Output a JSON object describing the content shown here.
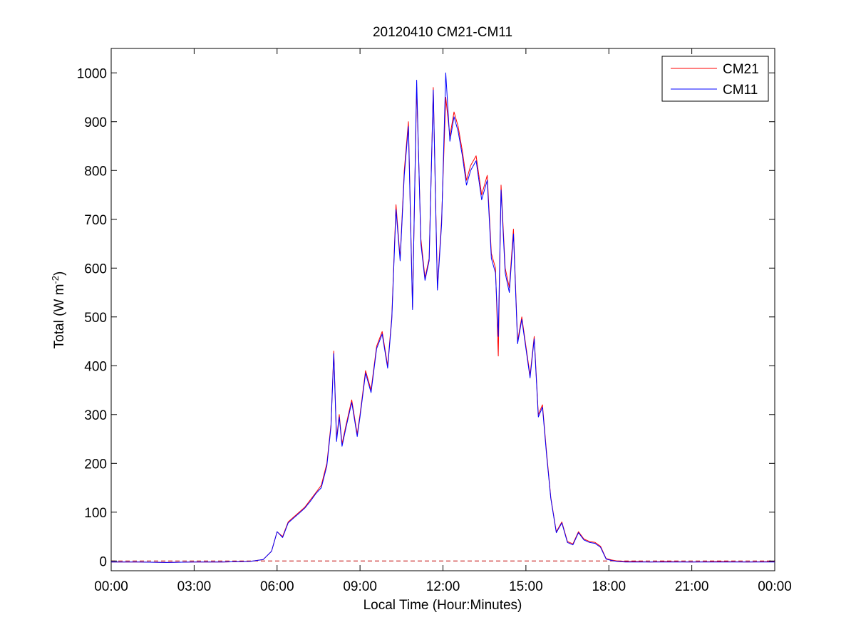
{
  "chart_data": {
    "type": "line",
    "title": "20120410 CM21-CM11",
    "xlabel": "Local Time (Hour:Minutes)",
    "ylabel_main": "Total (W m",
    "ylabel_sup": "-2",
    "ylabel_close": ")",
    "xlim": [
      0,
      24
    ],
    "ylim": [
      -20,
      1050
    ],
    "x_ticks": [
      0,
      3,
      6,
      9,
      12,
      15,
      18,
      21,
      24
    ],
    "x_tick_labels": [
      "00:00",
      "03:00",
      "06:00",
      "09:00",
      "12:00",
      "15:00",
      "18:00",
      "21:00",
      "00:00"
    ],
    "y_ticks": [
      0,
      100,
      200,
      300,
      400,
      500,
      600,
      700,
      800,
      900,
      1000
    ],
    "y_tick_labels": [
      "0",
      "100",
      "200",
      "300",
      "400",
      "500",
      "600",
      "700",
      "800",
      "900",
      "1000"
    ],
    "grid": false,
    "legend_position": "top-right",
    "zero_line": {
      "style": "dashed",
      "color": "#c00000",
      "value": 0
    },
    "series": [
      {
        "name": "CM21",
        "color": "#ff0000",
        "x": [
          0,
          1,
          2,
          3,
          4,
          5,
          5.5,
          5.8,
          6.0,
          6.2,
          6.4,
          6.6,
          6.8,
          7.0,
          7.2,
          7.4,
          7.6,
          7.8,
          7.95,
          8.05,
          8.15,
          8.25,
          8.35,
          8.5,
          8.7,
          8.9,
          9.0,
          9.2,
          9.4,
          9.6,
          9.8,
          10.0,
          10.15,
          10.3,
          10.45,
          10.6,
          10.75,
          10.9,
          11.05,
          11.2,
          11.35,
          11.5,
          11.65,
          11.8,
          11.95,
          12.1,
          12.25,
          12.4,
          12.55,
          12.7,
          12.85,
          13.0,
          13.2,
          13.4,
          13.6,
          13.75,
          13.9,
          14.0,
          14.1,
          14.25,
          14.4,
          14.55,
          14.7,
          14.85,
          15.0,
          15.15,
          15.3,
          15.45,
          15.6,
          15.75,
          15.9,
          16.1,
          16.3,
          16.5,
          16.7,
          16.9,
          17.1,
          17.3,
          17.5,
          17.7,
          17.9,
          18.1,
          18.3,
          18.6,
          19.0,
          19.5,
          20,
          21,
          22,
          23,
          24
        ],
        "values": [
          -2,
          -2,
          -3,
          -2,
          -2,
          -1,
          3,
          20,
          60,
          50,
          80,
          90,
          100,
          110,
          125,
          140,
          155,
          200,
          280,
          430,
          250,
          300,
          240,
          280,
          330,
          260,
          300,
          390,
          350,
          440,
          470,
          400,
          500,
          730,
          620,
          800,
          900,
          520,
          970,
          660,
          580,
          620,
          970,
          560,
          700,
          950,
          870,
          920,
          890,
          840,
          780,
          810,
          830,
          750,
          790,
          630,
          600,
          420,
          770,
          600,
          560,
          680,
          450,
          500,
          440,
          380,
          460,
          300,
          320,
          220,
          130,
          60,
          80,
          40,
          35,
          60,
          45,
          40,
          38,
          30,
          5,
          2,
          0,
          -1,
          -1,
          -2,
          -1,
          -2,
          -1,
          -2,
          -1
        ]
      },
      {
        "name": "CM11",
        "color": "#0000ff",
        "x": [
          0,
          1,
          2,
          3,
          4,
          5,
          5.5,
          5.8,
          6.0,
          6.2,
          6.4,
          6.6,
          6.8,
          7.0,
          7.2,
          7.4,
          7.6,
          7.8,
          7.95,
          8.05,
          8.15,
          8.25,
          8.35,
          8.5,
          8.7,
          8.9,
          9.0,
          9.2,
          9.4,
          9.6,
          9.8,
          10.0,
          10.15,
          10.3,
          10.45,
          10.6,
          10.75,
          10.9,
          11.05,
          11.2,
          11.35,
          11.5,
          11.65,
          11.8,
          11.95,
          12.1,
          12.25,
          12.4,
          12.55,
          12.7,
          12.85,
          13.0,
          13.2,
          13.4,
          13.6,
          13.75,
          13.9,
          14.0,
          14.1,
          14.25,
          14.4,
          14.55,
          14.7,
          14.85,
          15.0,
          15.15,
          15.3,
          15.45,
          15.6,
          15.75,
          15.9,
          16.1,
          16.3,
          16.5,
          16.7,
          16.9,
          17.1,
          17.3,
          17.5,
          17.7,
          17.9,
          18.1,
          18.3,
          18.6,
          19.0,
          19.5,
          20,
          21,
          22,
          23,
          24
        ],
        "values": [
          -2,
          -2,
          -3,
          -2,
          -2,
          -1,
          3,
          20,
          60,
          48,
          78,
          88,
          98,
          108,
          122,
          138,
          150,
          195,
          275,
          425,
          245,
          295,
          235,
          275,
          325,
          255,
          295,
          385,
          345,
          435,
          465,
          395,
          495,
          720,
          615,
          790,
          890,
          515,
          985,
          650,
          575,
          615,
          965,
          555,
          690,
          1000,
          860,
          910,
          880,
          830,
          770,
          800,
          820,
          740,
          780,
          620,
          590,
          460,
          760,
          590,
          550,
          670,
          445,
          495,
          435,
          375,
          455,
          295,
          315,
          215,
          128,
          58,
          78,
          38,
          33,
          58,
          43,
          38,
          36,
          28,
          4,
          1,
          -1,
          -2,
          -2,
          -2,
          -2,
          -2,
          -2,
          -2,
          -2
        ]
      }
    ]
  }
}
